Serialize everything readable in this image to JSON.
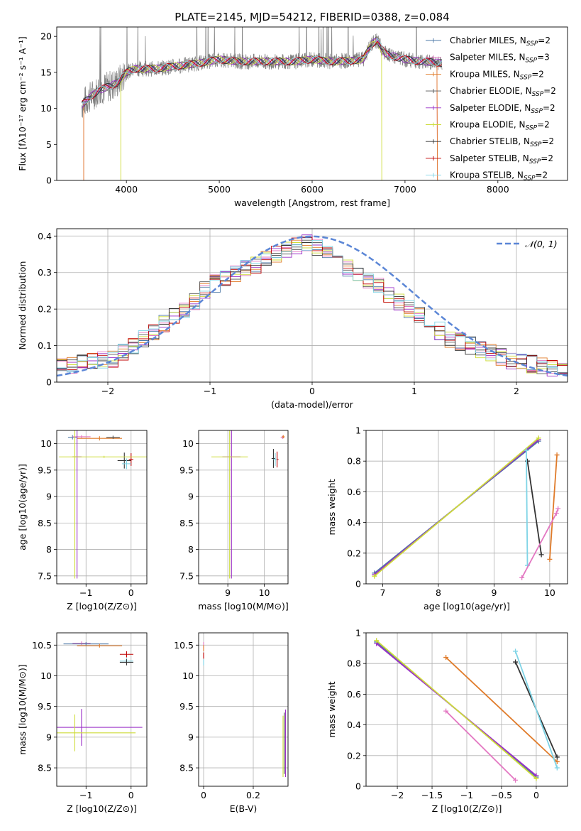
{
  "figure_title": "PLATE=2145, MJD=54212, FIBERID=0388, z=0.084",
  "colors": {
    "Chabrier MILES": "#4e79a7",
    "Salpeter MILES": "#e377c2",
    "Kroupa MILES": "#e07b2a",
    "Chabrier ELODIE": "#555555",
    "Salpeter ELODIE": "#9b30c8",
    "Kroupa ELODIE": "#cddc39",
    "Chabrier STELIB": "#333333",
    "Salpeter STELIB": "#c00000",
    "Kroupa STELIB": "#7fd4e6",
    "normal": "#5b86d6"
  },
  "chart_data": [
    {
      "id": "spectrum",
      "type": "line",
      "title": "PLATE=2145, MJD=54212, FIBERID=0388, z=0.084",
      "xlabel": "wavelength [Angstrom, rest frame]",
      "ylabel": "Flux [fλ10⁻¹⁷ erg cm⁻² s⁻¹ A⁻¹]",
      "xlim": [
        3250,
        8750
      ],
      "ylim": [
        0,
        21.3
      ],
      "xticks": [
        4000,
        5000,
        6000,
        7000,
        8000
      ],
      "yticks": [
        0,
        5,
        10,
        15,
        20
      ],
      "grid": false,
      "legend_position": "right",
      "observed_range": [
        3520,
        7400
      ],
      "legend": [
        {
          "label": "Chabrier MILES, N",
          "sub": "SSP",
          "tail": "=2"
        },
        {
          "label": "Salpeter MILES, N",
          "sub": "SSP",
          "tail": "=3"
        },
        {
          "label": "Kroupa MILES, N",
          "sub": "SSP",
          "tail": "=2"
        },
        {
          "label": "Chabrier ELODIE, N",
          "sub": "SSP",
          "tail": "=2"
        },
        {
          "label": "Salpeter ELODIE, N",
          "sub": "SSP",
          "tail": "=2"
        },
        {
          "label": "Kroupa ELODIE, N",
          "sub": "SSP",
          "tail": "=2"
        },
        {
          "label": "Chabrier STELIB, N",
          "sub": "SSP",
          "tail": "=2"
        },
        {
          "label": "Salpeter STELIB, N",
          "sub": "SSP",
          "tail": "=2"
        },
        {
          "label": "Kroupa STELIB, N",
          "sub": "SSP",
          "tail": "=2"
        }
      ],
      "continuum": {
        "x": [
          3520,
          3600,
          3700,
          3800,
          3900,
          4000,
          4100,
          4300,
          4500,
          4800,
          5000,
          5200,
          5500,
          5800,
          6000,
          6200,
          6400,
          6550,
          6600,
          6650,
          6700,
          6750,
          6800,
          7000,
          7200,
          7400
        ],
        "y": [
          10.5,
          11.5,
          12.5,
          13.0,
          13.5,
          15.0,
          15.5,
          15.5,
          15.8,
          16.3,
          16.8,
          16.5,
          16.5,
          16.5,
          16.8,
          16.5,
          16.6,
          16.8,
          18.0,
          19.0,
          19.5,
          18.2,
          17.5,
          16.8,
          16.5,
          16.3
        ]
      },
      "model_edges": [
        {
          "model": "Kroupa MILES",
          "range": [
            3540,
            7350
          ]
        },
        {
          "model": "Salpeter MILES",
          "range": [
            3540,
            7350
          ]
        },
        {
          "model": "Kroupa ELODIE",
          "range": [
            3940,
            6750
          ]
        }
      ]
    },
    {
      "id": "residuals",
      "type": "histogram",
      "xlabel": "(data-model)/error",
      "ylabel": "Normed distribution",
      "xlim": [
        -2.5,
        2.5
      ],
      "ylim": [
        0,
        0.42
      ],
      "xticks": [
        -2,
        -1,
        0,
        1,
        2
      ],
      "yticks": [
        0.0,
        0.1,
        0.2,
        0.3,
        0.4
      ],
      "grid": true,
      "legend_position": "upper right",
      "legend": [
        {
          "label": "𝒩(0, 1)",
          "style": "dashed"
        }
      ],
      "bin_width": 0.1,
      "envelope": [
        0.04,
        0.045,
        0.05,
        0.055,
        0.06,
        0.065,
        0.08,
        0.1,
        0.12,
        0.14,
        0.16,
        0.18,
        0.2,
        0.22,
        0.25,
        0.27,
        0.28,
        0.3,
        0.31,
        0.32,
        0.34,
        0.35,
        0.36,
        0.37,
        0.38,
        0.37,
        0.35,
        0.33,
        0.31,
        0.3,
        0.28,
        0.26,
        0.24,
        0.22,
        0.2,
        0.18,
        0.16,
        0.14,
        0.12,
        0.11,
        0.1,
        0.09,
        0.08,
        0.07,
        0.06,
        0.055,
        0.05,
        0.045,
        0.04,
        0.035
      ]
    },
    {
      "id": "age-vs-Z",
      "type": "scatter",
      "xlabel": "Z [log10(Z/Z⊙)]",
      "ylabel": "age  [log10(age/yr)]",
      "xlim": [
        -1.65,
        0.35
      ],
      "ylim": [
        7.35,
        10.25
      ],
      "xticks": [
        -1,
        0
      ],
      "yticks": [
        7.5,
        8.0,
        8.5,
        9.0,
        9.5,
        10.0
      ],
      "grid": true,
      "points": [
        {
          "model": "Chabrier MILES",
          "x": -1.3,
          "y": 10.12,
          "ex": 0.1,
          "ey": 0.04
        },
        {
          "model": "Salpeter MILES",
          "x": -1.1,
          "y": 10.13,
          "ex": 0.2,
          "ey": 0.03
        },
        {
          "model": "Kroupa MILES",
          "x": -0.7,
          "y": 10.1,
          "ex": 0.5,
          "ey": 0.04
        },
        {
          "model": "Chabrier ELODIE",
          "x": -0.4,
          "y": 10.12,
          "ex": 0.15,
          "ey": 0.03
        },
        {
          "model": "Salpeter ELODIE",
          "x": -1.2,
          "y": 9.75,
          "ex": 0.1,
          "ey": 2.3
        },
        {
          "model": "Kroupa ELODIE",
          "x": -1.25,
          "y": 9.75,
          "ex": 0.05,
          "ey": 2.3
        },
        {
          "model": "Chabrier STELIB",
          "x": -0.15,
          "y": 9.68,
          "ex": 0.15,
          "ey": 0.15
        },
        {
          "model": "Salpeter STELIB",
          "x": 0.0,
          "y": 9.7,
          "ex": 0.05,
          "ey": 0.12
        },
        {
          "model": "Kroupa STELIB",
          "x": -0.1,
          "y": 9.62,
          "ex": 0.1,
          "ey": 0.1
        },
        {
          "model": "Kroupa ELODIE",
          "x": -0.6,
          "y": 9.75,
          "ex": 1.0,
          "ey": 0.02
        }
      ]
    },
    {
      "id": "age-vs-mass",
      "type": "scatter",
      "xlabel": "mass [log10(M/M⊙)]",
      "ylabel": "",
      "xlim": [
        8.2,
        10.65
      ],
      "ylim": [
        7.35,
        10.25
      ],
      "xticks": [
        9,
        10
      ],
      "yticks": [
        7.5,
        8.0,
        8.5,
        9.0,
        9.5,
        10.0
      ],
      "grid": true,
      "points": [
        {
          "model": "Salpeter ELODIE",
          "x": 9.1,
          "y": 9.75,
          "ex": 0.25,
          "ey": 2.3
        },
        {
          "model": "Kroupa ELODIE",
          "x": 9.05,
          "y": 9.75,
          "ex": 0.5,
          "ey": 2.3
        },
        {
          "model": "Chabrier STELIB",
          "x": 10.25,
          "y": 9.72,
          "ex": 0.05,
          "ey": 0.18
        },
        {
          "model": "Salpeter STELIB",
          "x": 10.35,
          "y": 9.7,
          "ex": 0.04,
          "ey": 0.15
        },
        {
          "model": "Kroupa STELIB",
          "x": 10.3,
          "y": 9.7,
          "ex": 0.05,
          "ey": 0.12
        },
        {
          "model": "Salpeter MILES",
          "x": 10.5,
          "y": 10.12,
          "ex": 0.05,
          "ey": 0.03
        },
        {
          "model": "Kroupa MILES",
          "x": 10.52,
          "y": 10.13,
          "ex": 0.04,
          "ey": 0.03
        }
      ]
    },
    {
      "id": "weight-vs-age",
      "type": "line",
      "xlabel": "age  [log10(age/yr)]",
      "ylabel": "mass weight",
      "xlim": [
        6.7,
        10.32
      ],
      "ylim": [
        0,
        1.0
      ],
      "xticks": [
        7,
        8,
        9,
        10
      ],
      "yticks": [
        0.0,
        0.2,
        0.4,
        0.6,
        0.8,
        1.0
      ],
      "grid": true,
      "series": [
        {
          "model": "Chabrier MILES",
          "x": [
            6.85,
            9.8
          ],
          "y": [
            0.07,
            0.93
          ]
        },
        {
          "model": "Salpeter ELODIE",
          "x": [
            6.85,
            9.8
          ],
          "y": [
            0.06,
            0.94
          ]
        },
        {
          "model": "Kroupa ELODIE",
          "x": [
            6.85,
            9.8
          ],
          "y": [
            0.05,
            0.95
          ]
        },
        {
          "model": "Chabrier STELIB",
          "x": [
            9.6,
            9.85
          ],
          "y": [
            0.8,
            0.19
          ]
        },
        {
          "model": "Kroupa STELIB",
          "x": [
            9.58,
            9.6
          ],
          "y": [
            0.87,
            0.12
          ]
        },
        {
          "model": "Kroupa MILES",
          "x": [
            10.0,
            10.13
          ],
          "y": [
            0.16,
            0.84
          ]
        },
        {
          "model": "Salpeter MILES",
          "x": [
            9.5,
            10.12,
            10.15
          ],
          "y": [
            0.04,
            0.46,
            0.49
          ]
        }
      ]
    },
    {
      "id": "mass-vs-Z",
      "type": "scatter",
      "xlabel": "Z [log10(Z/Z⊙)]",
      "ylabel": "mass [log10(M/M⊙)]",
      "xlim": [
        -1.65,
        0.35
      ],
      "ylim": [
        8.2,
        10.7
      ],
      "xticks": [
        -1,
        0
      ],
      "yticks": [
        8.5,
        9.0,
        9.5,
        10.0,
        10.5
      ],
      "grid": true,
      "points": [
        {
          "model": "Salpeter MILES",
          "x": -1.1,
          "y": 10.53,
          "ex": 0.2,
          "ey": 0.03
        },
        {
          "model": "Chabrier MILES",
          "x": -1.0,
          "y": 10.52,
          "ex": 0.5,
          "ey": 0.03
        },
        {
          "model": "Kroupa MILES",
          "x": -0.7,
          "y": 10.49,
          "ex": 0.5,
          "ey": 0.03
        },
        {
          "model": "Salpeter STELIB",
          "x": -0.1,
          "y": 10.35,
          "ex": 0.15,
          "ey": 0.05
        },
        {
          "model": "Kroupa STELIB",
          "x": -0.1,
          "y": 10.24,
          "ex": 0.15,
          "ey": 0.05
        },
        {
          "model": "Chabrier STELIB",
          "x": -0.1,
          "y": 10.22,
          "ex": 0.15,
          "ey": 0.05
        },
        {
          "model": "Salpeter ELODIE",
          "x": -1.1,
          "y": 9.16,
          "ex": 1.35,
          "ey": 0.3
        },
        {
          "model": "Kroupa ELODIE",
          "x": -1.25,
          "y": 9.07,
          "ex": 1.35,
          "ey": 0.3
        }
      ]
    },
    {
      "id": "mass-vs-EBV",
      "type": "scatter",
      "xlabel": "E(B-V)",
      "ylabel": "",
      "xlim": [
        -0.02,
        0.34
      ],
      "ylim": [
        8.2,
        10.7
      ],
      "xticks": [
        0.0,
        0.2
      ],
      "yticks": [
        8.5,
        9.0,
        9.5,
        10.0,
        10.5
      ],
      "grid": true,
      "points": [
        {
          "model": "Salpeter MILES",
          "x": 0.0,
          "y": 10.5,
          "ex": 0.0,
          "ey": 0.05
        },
        {
          "model": "Kroupa MILES",
          "x": 0.0,
          "y": 10.45,
          "ex": 0.0,
          "ey": 0.05
        },
        {
          "model": "Salpeter STELIB",
          "x": 0.0,
          "y": 10.33,
          "ex": 0.0,
          "ey": 0.05
        },
        {
          "model": "Kroupa STELIB",
          "x": 0.0,
          "y": 10.22,
          "ex": 0.0,
          "ey": 0.05
        },
        {
          "model": "Salpeter ELODIE",
          "x": 0.33,
          "y": 8.9,
          "ex": 0.0,
          "ey": 0.55
        },
        {
          "model": "Kroupa ELODIE",
          "x": 0.32,
          "y": 8.85,
          "ex": 0.0,
          "ey": 0.5
        },
        {
          "model": "Chabrier ELODIE",
          "x": 0.325,
          "y": 8.9,
          "ex": 0.0,
          "ey": 0.5
        }
      ]
    },
    {
      "id": "weight-vs-Z",
      "type": "line",
      "xlabel": "Z [log10(Z/Z⊙)]",
      "ylabel": "mass weight",
      "xlim": [
        -2.45,
        0.45
      ],
      "ylim": [
        0,
        1.0
      ],
      "xticks": [
        -2.0,
        -1.5,
        -1.0,
        -0.5,
        0.0
      ],
      "yticks": [
        0.0,
        0.2,
        0.4,
        0.6,
        0.8,
        1.0
      ],
      "grid": true,
      "series": [
        {
          "model": "Chabrier MILES",
          "x": [
            -2.3,
            0.0
          ],
          "y": [
            0.94,
            0.06
          ]
        },
        {
          "model": "Salpeter ELODIE",
          "x": [
            -2.3,
            0.0
          ],
          "y": [
            0.93,
            0.07
          ]
        },
        {
          "model": "Kroupa ELODIE",
          "x": [
            -2.3,
            0.0
          ],
          "y": [
            0.95,
            0.05
          ]
        },
        {
          "model": "Kroupa MILES",
          "x": [
            -1.3,
            0.3
          ],
          "y": [
            0.84,
            0.16
          ]
        },
        {
          "model": "Chabrier STELIB",
          "x": [
            -0.3,
            0.3
          ],
          "y": [
            0.81,
            0.19
          ]
        },
        {
          "model": "Kroupa STELIB",
          "x": [
            -0.3,
            0.3
          ],
          "y": [
            0.88,
            0.12
          ]
        },
        {
          "model": "Salpeter MILES",
          "x": [
            -1.3,
            -0.3
          ],
          "y": [
            0.49,
            0.04
          ]
        }
      ]
    }
  ]
}
